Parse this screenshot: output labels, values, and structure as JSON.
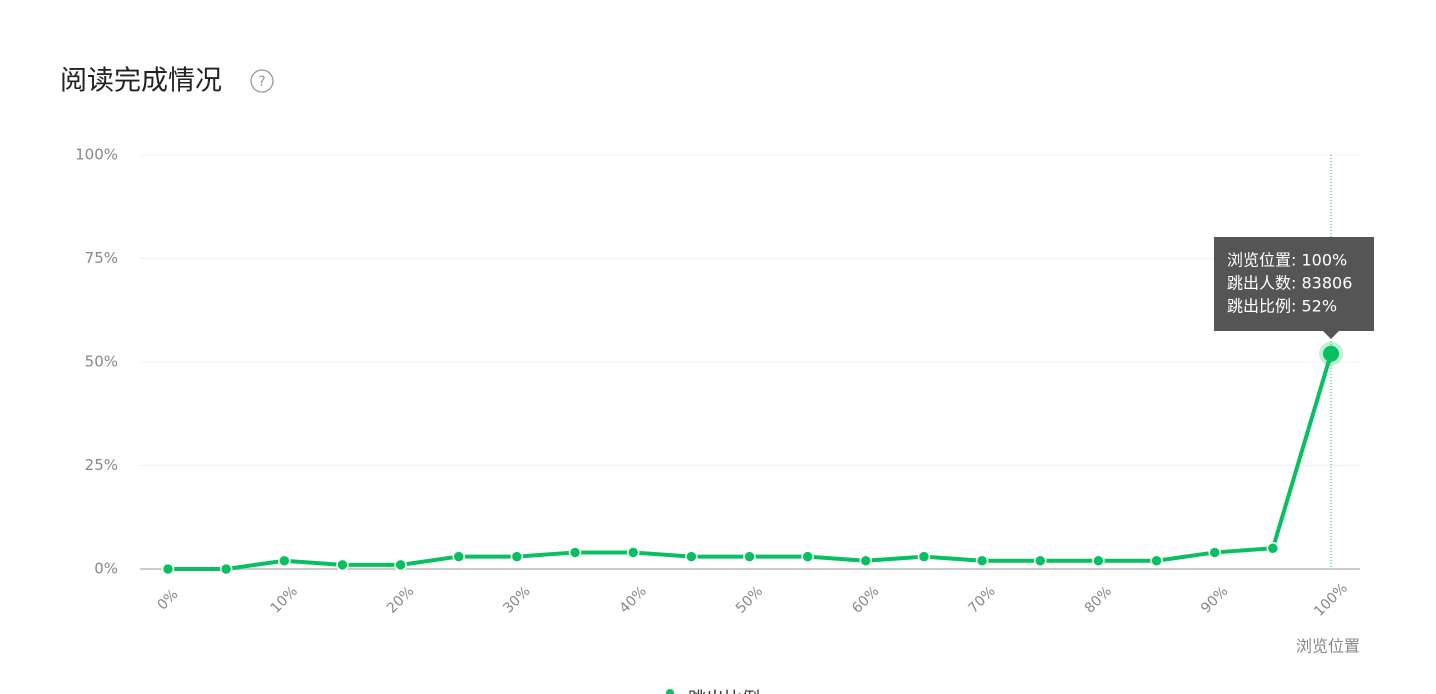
{
  "chart_data": {
    "type": "line",
    "title": "阅读完成情况",
    "categories": [
      "0%",
      null,
      "10%",
      null,
      "20%",
      null,
      "30%",
      null,
      "40%",
      null,
      "50%",
      null,
      "60%",
      null,
      "70%",
      null,
      "80%",
      null,
      "90%",
      null,
      "100%"
    ],
    "series": [
      {
        "name": "跳出比例",
        "color": "#07c160",
        "values": [
          0,
          0,
          2,
          1,
          1,
          3,
          3,
          4,
          4,
          3,
          3,
          3,
          2,
          3,
          2,
          2,
          2,
          2,
          4,
          5,
          52
        ]
      }
    ],
    "x_label": "浏览位置",
    "ylim": [
      0,
      100
    ],
    "yticks": [
      {
        "value": 0,
        "label": "0%"
      },
      {
        "value": 25,
        "label": "25%"
      },
      {
        "value": 50,
        "label": "50%"
      },
      {
        "value": 75,
        "label": "75%"
      },
      {
        "value": 100,
        "label": "100%"
      }
    ],
    "grid": true,
    "tooltip": {
      "index": 20,
      "lines": [
        "浏览位置: 100%",
        "跳出人数: 83806",
        "跳出比例: 52%"
      ]
    }
  }
}
